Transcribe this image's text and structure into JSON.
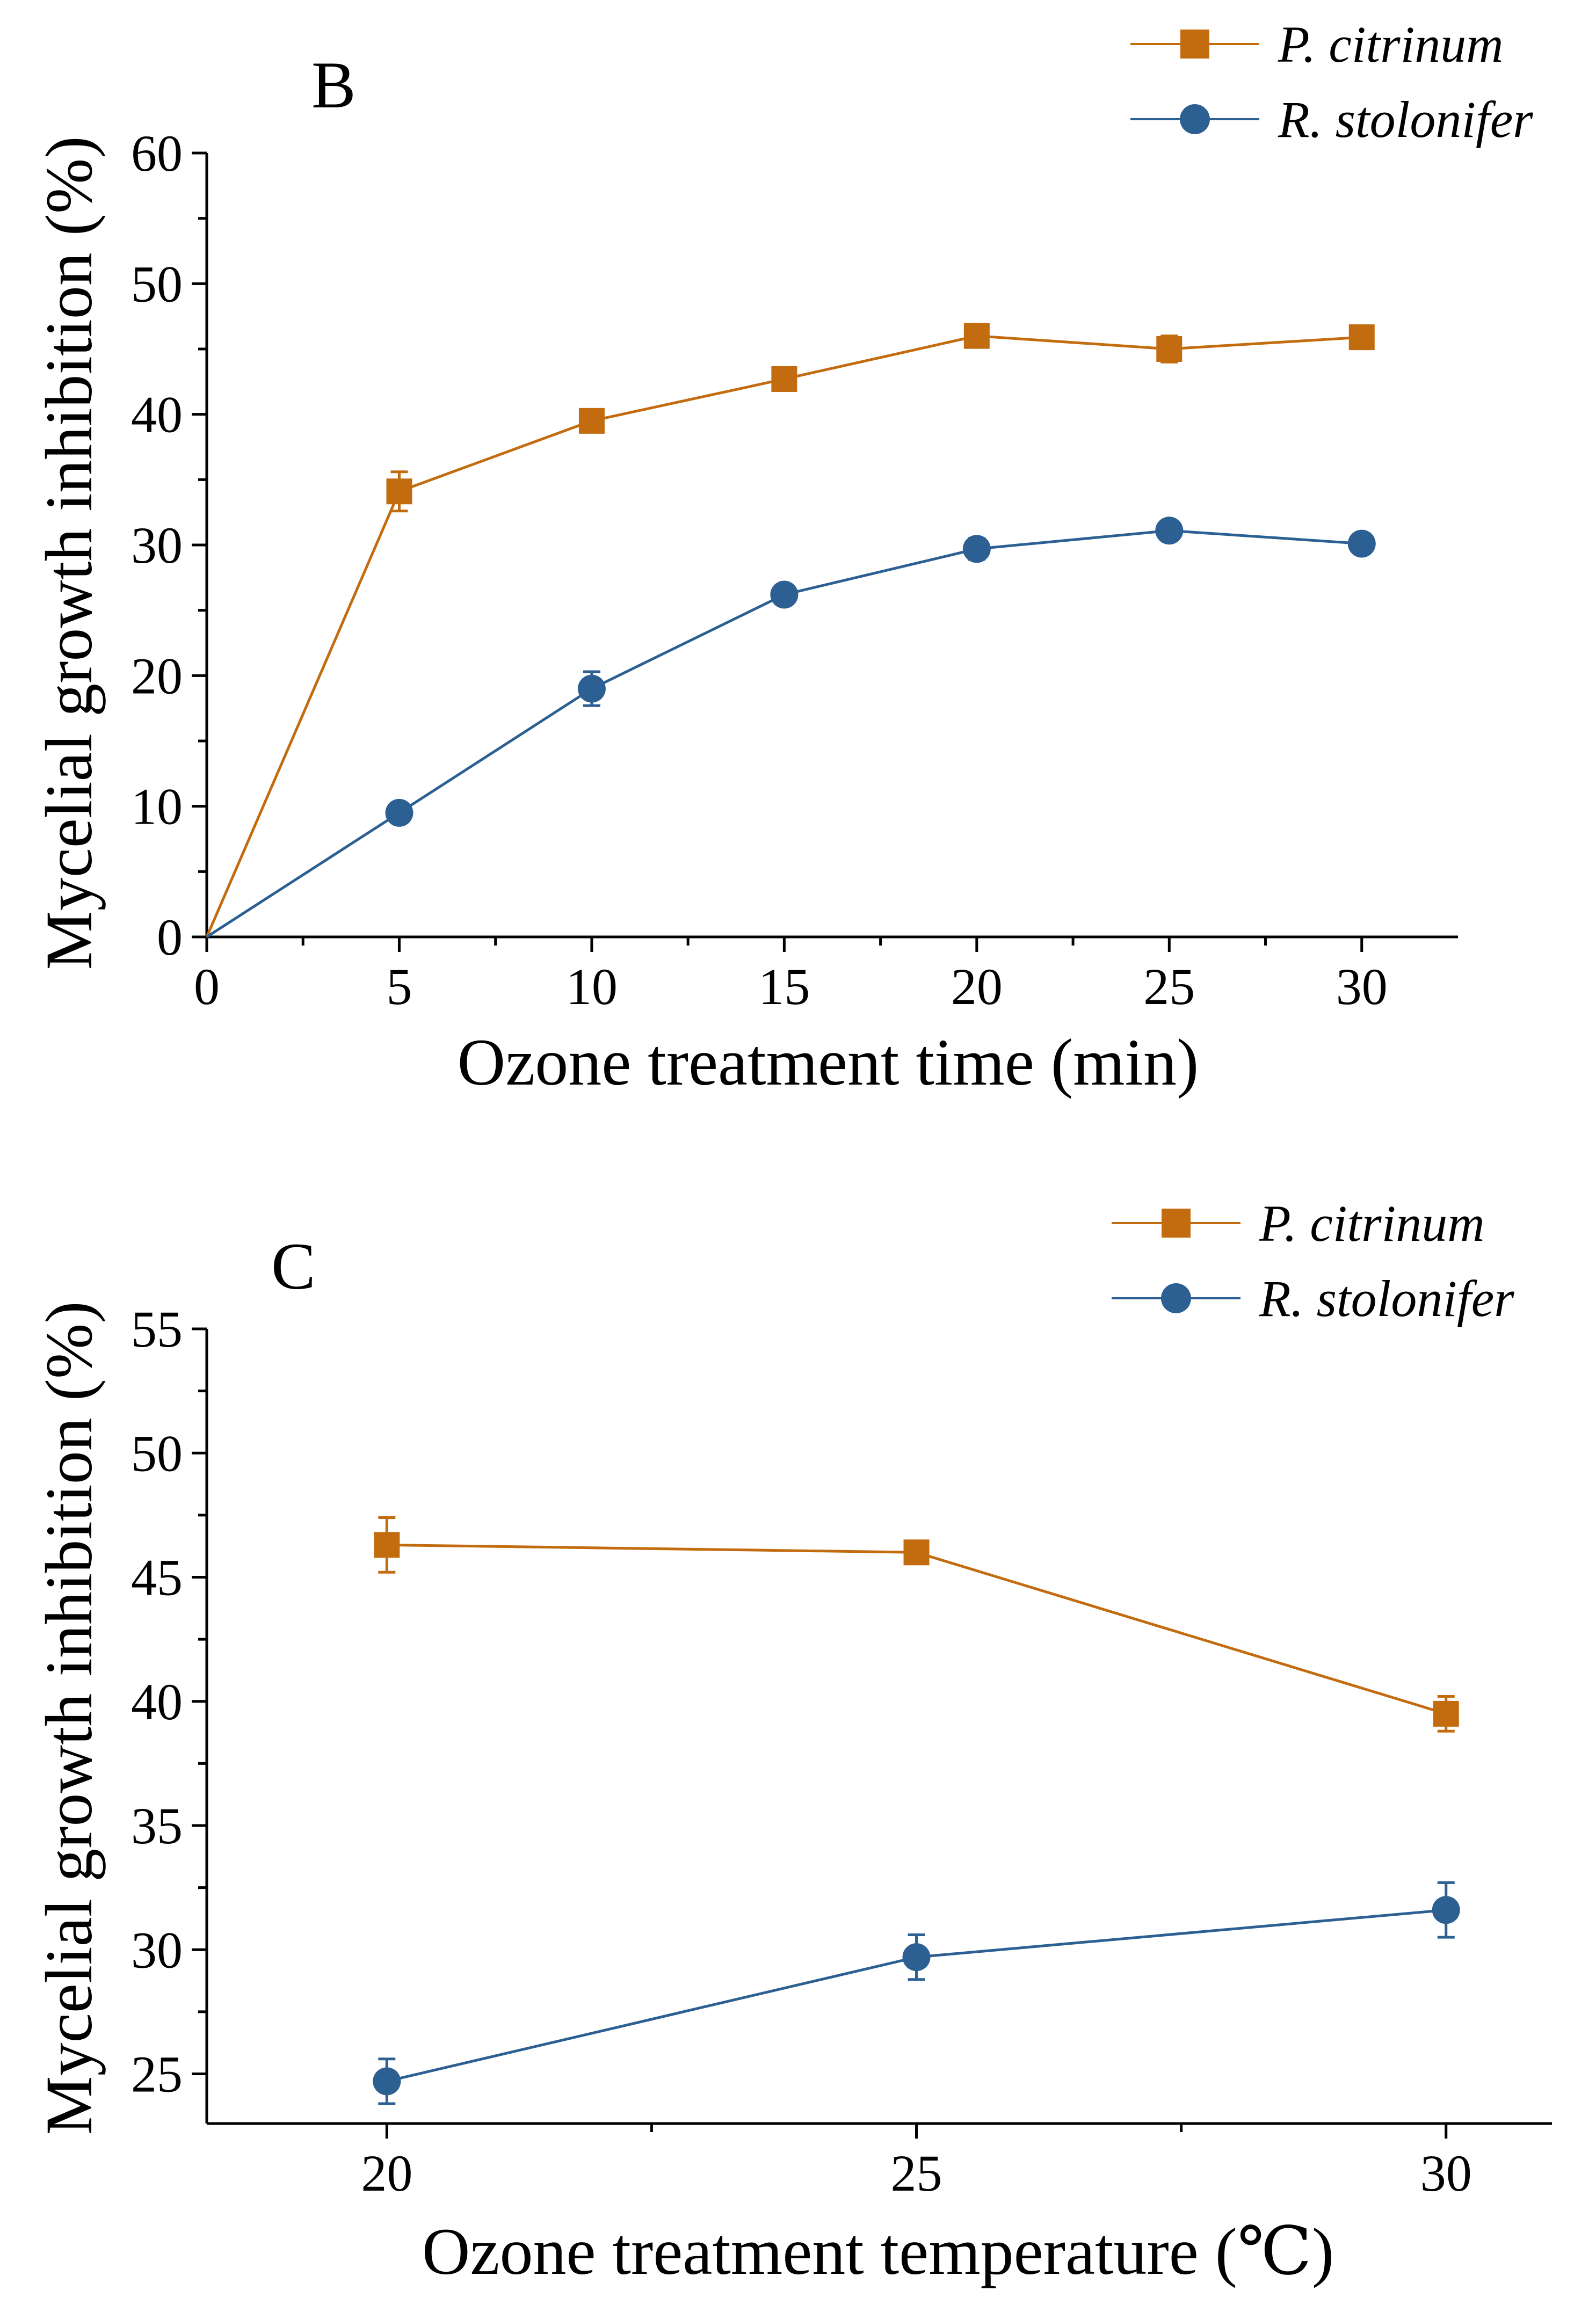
{
  "colors": {
    "p_citrinum": "#C36C0F",
    "r_stolonifer": "#2C5F92",
    "axis": "#000000"
  },
  "chart_data": [
    {
      "panel": "B",
      "type": "line",
      "title": "",
      "xlabel": "Ozone treatment time (min)",
      "ylabel": "Mycelial growth inhibition (%)",
      "xlim": [
        0,
        32.5
      ],
      "ylim": [
        0,
        60
      ],
      "xticks": [
        0,
        5,
        10,
        15,
        20,
        25,
        30
      ],
      "xtick_labels": [
        "0",
        "5",
        "10",
        "15",
        "20",
        "25",
        "30"
      ],
      "yticks": [
        0,
        10,
        20,
        30,
        40,
        50,
        60
      ],
      "ytick_labels": [
        "0",
        "10",
        "20",
        "30",
        "40",
        "50",
        "60"
      ],
      "legend_position": "top-right",
      "x": [
        0,
        5,
        10,
        15,
        20,
        25,
        30
      ],
      "series": [
        {
          "name": "P. citrinum",
          "marker": "square",
          "color": "#C36C0F",
          "values": [
            0,
            34.1,
            39.5,
            42.7,
            46.0,
            45.0,
            45.9
          ],
          "errors": [
            0,
            1.5,
            0.6,
            0.4,
            0.4,
            1.0,
            0.8
          ],
          "first_point_marker": false
        },
        {
          "name": "R. stolonifer",
          "marker": "circle",
          "color": "#2C5F92",
          "values": [
            0,
            9.5,
            19.0,
            26.2,
            29.7,
            31.1,
            30.1
          ],
          "errors": [
            0,
            0.7,
            1.3,
            0.7,
            0.8,
            0.6,
            0.5
          ],
          "first_point_marker": false
        }
      ]
    },
    {
      "panel": "C",
      "type": "line",
      "title": "",
      "xlabel": "Ozone treatment temperature (℃)",
      "ylabel": "Mycelial growth inhibition (%)",
      "xlim": [
        18.3,
        31.0
      ],
      "ylim": [
        23,
        55
      ],
      "xticks": [
        20,
        25,
        30
      ],
      "xtick_labels": [
        "20",
        "25",
        "30"
      ],
      "yticks": [
        25,
        30,
        35,
        40,
        45,
        50,
        55
      ],
      "ytick_labels": [
        "25",
        "30",
        "35",
        "40",
        "45",
        "50",
        "55"
      ],
      "legend_position": "top-right",
      "x": [
        20,
        25,
        30
      ],
      "series": [
        {
          "name": "P. citrinum",
          "marker": "square",
          "color": "#C36C0F",
          "values": [
            46.3,
            46.0,
            39.5
          ],
          "errors": [
            1.1,
            0.4,
            0.7
          ],
          "first_point_marker": true
        },
        {
          "name": "R. stolonifer",
          "marker": "circle",
          "color": "#2C5F92",
          "values": [
            24.7,
            29.7,
            31.6
          ],
          "errors": [
            0.9,
            0.9,
            1.1
          ],
          "first_point_marker": true
        }
      ]
    }
  ]
}
